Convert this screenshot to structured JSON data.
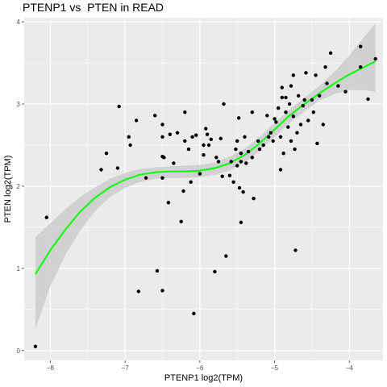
{
  "chart_data": {
    "type": "scatter",
    "title": "PTENP1 vs  PTEN in READ",
    "xlabel": "PTENP1 log2(TPM)",
    "ylabel": "PTEN log2(TPM)",
    "xlim": [
      -8.35,
      -3.55
    ],
    "ylim": [
      -0.12,
      4.05
    ],
    "xticks": [
      -8,
      -7,
      -6,
      -5,
      -4
    ],
    "yticks": [
      0,
      1,
      2,
      3,
      4
    ],
    "grid": true,
    "background": "#ebebeb",
    "point_color": "#000000",
    "smooth_color": "#00ff00",
    "band_color": "#cccccc",
    "points": [
      [
        -8.2,
        0.05
      ],
      [
        -8.05,
        1.62
      ],
      [
        -7.32,
        2.2
      ],
      [
        -7.25,
        2.4
      ],
      [
        -7.1,
        2.22
      ],
      [
        -7.08,
        2.97
      ],
      [
        -6.95,
        2.6
      ],
      [
        -6.93,
        2.5
      ],
      [
        -6.85,
        2.8
      ],
      [
        -6.82,
        0.72
      ],
      [
        -6.72,
        2.1
      ],
      [
        -6.6,
        2.86
      ],
      [
        -6.57,
        0.97
      ],
      [
        -6.5,
        0.73
      ],
      [
        -6.5,
        2.75
      ],
      [
        -6.5,
        2.6
      ],
      [
        -6.5,
        2.36
      ],
      [
        -6.48,
        2.35
      ],
      [
        -6.5,
        2.1
      ],
      [
        -6.42,
        1.8
      ],
      [
        -6.4,
        2.63
      ],
      [
        -6.35,
        2.28
      ],
      [
        -6.3,
        2.65
      ],
      [
        -6.25,
        1.57
      ],
      [
        -6.2,
        2.9
      ],
      [
        -6.2,
        2.55
      ],
      [
        -6.22,
        1.94
      ],
      [
        -6.15,
        2.45
      ],
      [
        -6.12,
        2.05
      ],
      [
        -6.1,
        2.6
      ],
      [
        -6.08,
        0.45
      ],
      [
        -6.05,
        2.62
      ],
      [
        -6.0,
        2.15
      ],
      [
        -5.95,
        2.38
      ],
      [
        -5.95,
        2.5
      ],
      [
        -5.92,
        2.7
      ],
      [
        -5.9,
        2.63
      ],
      [
        -5.88,
        2.5
      ],
      [
        -5.85,
        2.57
      ],
      [
        -5.8,
        0.96
      ],
      [
        -5.78,
        2.35
      ],
      [
        -5.75,
        2.3
      ],
      [
        -5.72,
        2.58
      ],
      [
        -5.7,
        2.12
      ],
      [
        -5.68,
        3.0
      ],
      [
        -5.65,
        1.15
      ],
      [
        -5.6,
        2.13
      ],
      [
        -5.58,
        2.3
      ],
      [
        -5.55,
        2.05
      ],
      [
        -5.52,
        2.45
      ],
      [
        -5.5,
        2.55
      ],
      [
        -5.5,
        2.25
      ],
      [
        -5.48,
        2.83
      ],
      [
        -5.47,
        1.98
      ],
      [
        -5.45,
        2.3
      ],
      [
        -5.45,
        2.4
      ],
      [
        -5.45,
        1.56
      ],
      [
        -5.42,
        1.93
      ],
      [
        -5.4,
        2.6
      ],
      [
        -5.38,
        2.28
      ],
      [
        -5.35,
        2.42
      ],
      [
        -5.3,
        2.35
      ],
      [
        -5.3,
        2.9
      ],
      [
        -5.28,
        1.85
      ],
      [
        -5.22,
        2.55
      ],
      [
        -5.2,
        2.45
      ],
      [
        -5.15,
        2.5
      ],
      [
        -5.1,
        2.86
      ],
      [
        -5.08,
        2.6
      ],
      [
        -5.05,
        2.65
      ],
      [
        -5.02,
        2.55
      ],
      [
        -5.0,
        2.82
      ],
      [
        -4.98,
        2.78
      ],
      [
        -4.95,
        2.95
      ],
      [
        -4.92,
        2.6
      ],
      [
        -4.92,
        2.2
      ],
      [
        -4.9,
        3.2
      ],
      [
        -4.9,
        3.08
      ],
      [
        -4.88,
        2.4
      ],
      [
        -4.85,
        3.08
      ],
      [
        -4.85,
        2.9
      ],
      [
        -4.82,
        2.72
      ],
      [
        -4.8,
        3.0
      ],
      [
        -4.78,
        2.55
      ],
      [
        -4.78,
        3.22
      ],
      [
        -4.75,
        3.35
      ],
      [
        -4.75,
        2.85
      ],
      [
        -4.73,
        2.45
      ],
      [
        -4.72,
        1.22
      ],
      [
        -4.7,
        2.65
      ],
      [
        -4.68,
        3.1
      ],
      [
        -4.65,
        2.75
      ],
      [
        -4.62,
        2.98
      ],
      [
        -4.6,
        3.05
      ],
      [
        -4.58,
        3.38
      ],
      [
        -4.55,
        2.8
      ],
      [
        -4.5,
        3.05
      ],
      [
        -4.48,
        2.9
      ],
      [
        -4.45,
        3.35
      ],
      [
        -4.43,
        2.52
      ],
      [
        -4.4,
        3.1
      ],
      [
        -4.35,
        2.75
      ],
      [
        -4.32,
        3.45
      ],
      [
        -4.3,
        3.25
      ],
      [
        -4.25,
        3.62
      ],
      [
        -4.15,
        3.22
      ],
      [
        -4.05,
        3.15
      ],
      [
        -3.85,
        3.7
      ],
      [
        -3.85,
        3.45
      ],
      [
        -3.75,
        3.06
      ],
      [
        -3.65,
        3.55
      ]
    ],
    "smooth_line": [
      [
        -8.2,
        0.93
      ],
      [
        -8.0,
        1.22
      ],
      [
        -7.8,
        1.47
      ],
      [
        -7.6,
        1.69
      ],
      [
        -7.4,
        1.86
      ],
      [
        -7.2,
        1.99
      ],
      [
        -7.0,
        2.08
      ],
      [
        -6.8,
        2.14
      ],
      [
        -6.6,
        2.17
      ],
      [
        -6.4,
        2.18
      ],
      [
        -6.2,
        2.18
      ],
      [
        -6.0,
        2.19
      ],
      [
        -5.8,
        2.22
      ],
      [
        -5.6,
        2.28
      ],
      [
        -5.4,
        2.38
      ],
      [
        -5.2,
        2.52
      ],
      [
        -5.0,
        2.69
      ],
      [
        -4.8,
        2.86
      ],
      [
        -4.6,
        3.0
      ],
      [
        -4.4,
        3.13
      ],
      [
        -4.2,
        3.25
      ],
      [
        -4.0,
        3.36
      ],
      [
        -3.8,
        3.45
      ],
      [
        -3.65,
        3.52
      ]
    ],
    "band_upper": [
      [
        -8.2,
        1.38
      ],
      [
        -8.0,
        1.55
      ],
      [
        -7.8,
        1.72
      ],
      [
        -7.6,
        1.87
      ],
      [
        -7.4,
        1.99
      ],
      [
        -7.2,
        2.09
      ],
      [
        -7.0,
        2.16
      ],
      [
        -6.8,
        2.21
      ],
      [
        -6.6,
        2.23
      ],
      [
        -6.4,
        2.24
      ],
      [
        -6.2,
        2.25
      ],
      [
        -6.0,
        2.26
      ],
      [
        -5.8,
        2.29
      ],
      [
        -5.6,
        2.36
      ],
      [
        -5.4,
        2.46
      ],
      [
        -5.2,
        2.6
      ],
      [
        -5.0,
        2.77
      ],
      [
        -4.8,
        2.93
      ],
      [
        -4.6,
        3.08
      ],
      [
        -4.4,
        3.22
      ],
      [
        -4.2,
        3.39
      ],
      [
        -4.0,
        3.59
      ],
      [
        -3.8,
        3.82
      ],
      [
        -3.65,
        3.98
      ]
    ],
    "band_lower": [
      [
        -8.2,
        0.27
      ],
      [
        -8.0,
        0.78
      ],
      [
        -7.8,
        1.16
      ],
      [
        -7.6,
        1.46
      ],
      [
        -7.4,
        1.7
      ],
      [
        -7.2,
        1.87
      ],
      [
        -7.0,
        1.98
      ],
      [
        -6.8,
        2.05
      ],
      [
        -6.6,
        2.09
      ],
      [
        -6.4,
        2.1
      ],
      [
        -6.2,
        2.1
      ],
      [
        -6.0,
        2.11
      ],
      [
        -5.8,
        2.14
      ],
      [
        -5.6,
        2.19
      ],
      [
        -5.4,
        2.29
      ],
      [
        -5.2,
        2.43
      ],
      [
        -5.0,
        2.6
      ],
      [
        -4.8,
        2.77
      ],
      [
        -4.6,
        2.91
      ],
      [
        -4.4,
        3.04
      ],
      [
        -4.2,
        3.12
      ],
      [
        -4.0,
        3.17
      ],
      [
        -3.8,
        3.17
      ],
      [
        -3.65,
        3.15
      ]
    ]
  }
}
